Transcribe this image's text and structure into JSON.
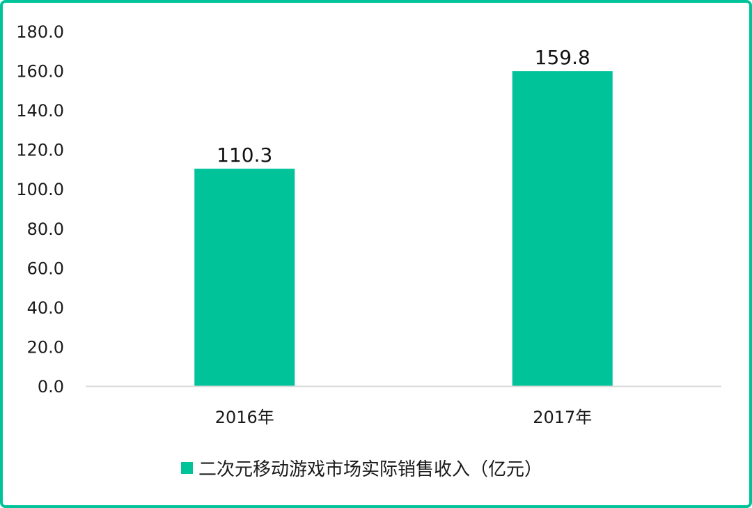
{
  "chart_data": {
    "type": "bar",
    "categories": [
      "2016年",
      "2017年"
    ],
    "series": [
      {
        "name": "二次元移动游戏市场实际销售收入（亿元）",
        "values": [
          110.3,
          159.8
        ],
        "color": "#00c39a"
      }
    ],
    "data_labels": [
      "110.3",
      "159.8"
    ],
    "y_ticks": [
      "0.0",
      "20.0",
      "40.0",
      "60.0",
      "80.0",
      "100.0",
      "120.0",
      "140.0",
      "160.0",
      "180.0"
    ],
    "ylim": [
      0,
      180
    ],
    "grid": false,
    "legend_position": "bottom",
    "title": "",
    "xlabel": "",
    "ylabel": ""
  },
  "colors": {
    "frame": "#00c39a",
    "bar": "#00c39a",
    "axis": "#d9d9d9",
    "text": "#1a1a1a"
  }
}
